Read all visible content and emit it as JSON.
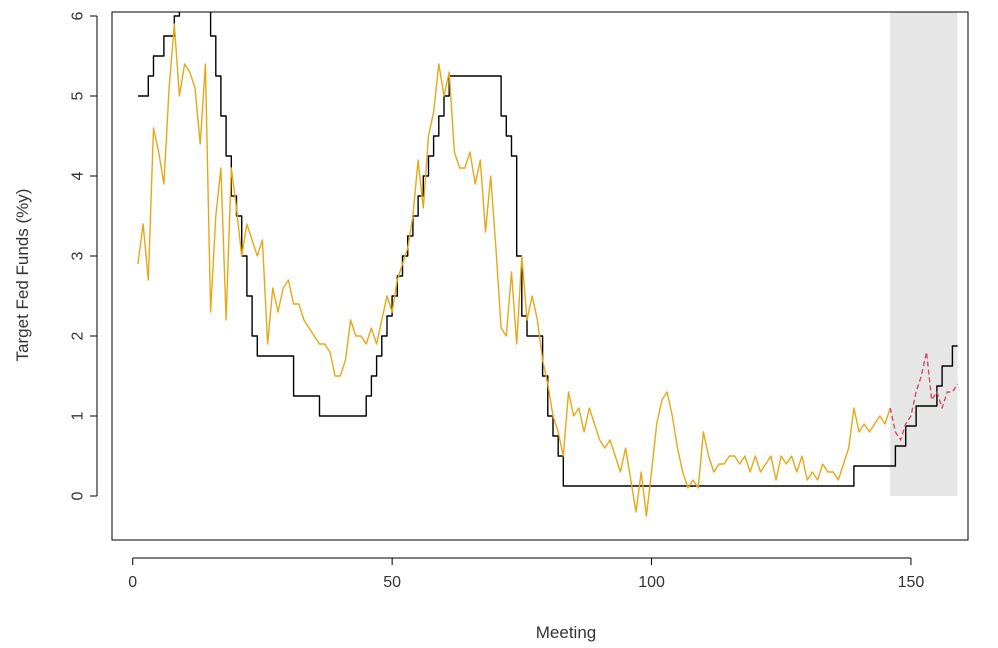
{
  "chart_data": {
    "type": "line",
    "title": "",
    "xlabel": "Meeting",
    "ylabel": "Target Fed Funds (%y)",
    "xlim": [
      -4,
      161
    ],
    "ylim": [
      -0.55,
      6.05
    ],
    "xticks": [
      "0",
      "50",
      "100",
      "150"
    ],
    "xtick_values": [
      0,
      50,
      100,
      150
    ],
    "yticks": [
      "0",
      "1",
      "2",
      "3",
      "4",
      "5",
      "6"
    ],
    "ytick_values": [
      0,
      1,
      2,
      3,
      4,
      5,
      6
    ],
    "grid": false,
    "legend": "none",
    "shaded_region": {
      "x": [
        146,
        159
      ],
      "y": [
        0,
        6.05
      ],
      "color": "#e6e6e6"
    },
    "series": [
      {
        "color": "#000000",
        "style": "solid",
        "step": true,
        "points": [
          [
            1,
            5.0
          ],
          [
            2,
            5.0
          ],
          [
            3,
            5.25
          ],
          [
            4,
            5.5
          ],
          [
            5,
            5.5
          ],
          [
            6,
            5.75
          ],
          [
            7,
            5.75
          ],
          [
            8,
            6.0
          ],
          [
            9,
            6.25
          ],
          [
            14,
            6.25
          ],
          [
            15,
            5.75
          ],
          [
            16,
            5.25
          ],
          [
            17,
            4.75
          ],
          [
            18,
            4.25
          ],
          [
            19,
            3.75
          ],
          [
            20,
            3.5
          ],
          [
            21,
            3.0
          ],
          [
            22,
            2.5
          ],
          [
            23,
            2.0
          ],
          [
            24,
            1.75
          ],
          [
            31,
            1.25
          ],
          [
            36,
            1.0
          ],
          [
            44,
            1.0
          ],
          [
            45,
            1.25
          ],
          [
            46,
            1.5
          ],
          [
            47,
            1.75
          ],
          [
            48,
            2.0
          ],
          [
            49,
            2.25
          ],
          [
            50,
            2.5
          ],
          [
            51,
            2.75
          ],
          [
            52,
            3.0
          ],
          [
            53,
            3.25
          ],
          [
            54,
            3.5
          ],
          [
            55,
            3.75
          ],
          [
            56,
            4.0
          ],
          [
            57,
            4.25
          ],
          [
            58,
            4.5
          ],
          [
            59,
            4.75
          ],
          [
            60,
            5.0
          ],
          [
            61,
            5.25
          ],
          [
            70,
            5.25
          ],
          [
            71,
            4.75
          ],
          [
            72,
            4.5
          ],
          [
            73,
            4.25
          ],
          [
            74,
            3.0
          ],
          [
            75,
            2.25
          ],
          [
            76,
            2.0
          ],
          [
            78,
            2.0
          ],
          [
            79,
            1.5
          ],
          [
            80,
            1.0
          ],
          [
            81,
            0.75
          ],
          [
            82,
            0.5
          ],
          [
            83,
            0.125
          ],
          [
            138,
            0.125
          ],
          [
            139,
            0.375
          ],
          [
            146,
            0.375
          ],
          [
            147,
            0.625
          ],
          [
            148,
            0.625
          ],
          [
            149,
            0.875
          ],
          [
            150,
            0.875
          ],
          [
            151,
            1.125
          ],
          [
            154,
            1.125
          ],
          [
            155,
            1.375
          ],
          [
            156,
            1.625
          ],
          [
            157,
            1.625
          ],
          [
            158,
            1.875
          ],
          [
            159,
            1.875
          ]
        ]
      },
      {
        "color": "#e6a817",
        "style": "solid",
        "step": false,
        "points": [
          [
            1,
            2.9
          ],
          [
            2,
            3.4
          ],
          [
            3,
            2.7
          ],
          [
            4,
            4.6
          ],
          [
            5,
            4.3
          ],
          [
            6,
            3.9
          ],
          [
            7,
            5.1
          ],
          [
            8,
            5.9
          ],
          [
            9,
            5.0
          ],
          [
            10,
            5.4
          ],
          [
            11,
            5.3
          ],
          [
            12,
            5.1
          ],
          [
            13,
            4.4
          ],
          [
            14,
            5.4
          ],
          [
            15,
            2.3
          ],
          [
            16,
            3.5
          ],
          [
            17,
            4.1
          ],
          [
            18,
            2.2
          ],
          [
            19,
            4.1
          ],
          [
            20,
            3.6
          ],
          [
            21,
            3.0
          ],
          [
            22,
            3.4
          ],
          [
            23,
            3.2
          ],
          [
            24,
            3.0
          ],
          [
            25,
            3.2
          ],
          [
            26,
            1.9
          ],
          [
            27,
            2.6
          ],
          [
            28,
            2.3
          ],
          [
            29,
            2.6
          ],
          [
            30,
            2.7
          ],
          [
            31,
            2.4
          ],
          [
            32,
            2.4
          ],
          [
            33,
            2.2
          ],
          [
            34,
            2.1
          ],
          [
            35,
            2.0
          ],
          [
            36,
            1.9
          ],
          [
            37,
            1.9
          ],
          [
            38,
            1.8
          ],
          [
            39,
            1.5
          ],
          [
            40,
            1.5
          ],
          [
            41,
            1.7
          ],
          [
            42,
            2.2
          ],
          [
            43,
            2.0
          ],
          [
            44,
            2.0
          ],
          [
            45,
            1.9
          ],
          [
            46,
            2.1
          ],
          [
            47,
            1.9
          ],
          [
            48,
            2.2
          ],
          [
            49,
            2.5
          ],
          [
            50,
            2.3
          ],
          [
            51,
            2.7
          ],
          [
            52,
            2.9
          ],
          [
            53,
            3.1
          ],
          [
            54,
            3.5
          ],
          [
            55,
            4.2
          ],
          [
            56,
            3.6
          ],
          [
            57,
            4.5
          ],
          [
            58,
            4.8
          ],
          [
            59,
            5.4
          ],
          [
            60,
            5.0
          ],
          [
            61,
            5.3
          ],
          [
            62,
            4.3
          ],
          [
            63,
            4.1
          ],
          [
            64,
            4.1
          ],
          [
            65,
            4.3
          ],
          [
            66,
            3.9
          ],
          [
            67,
            4.2
          ],
          [
            68,
            3.3
          ],
          [
            69,
            4.0
          ],
          [
            70,
            3.1
          ],
          [
            71,
            2.1
          ],
          [
            72,
            2.0
          ],
          [
            73,
            2.8
          ],
          [
            74,
            1.9
          ],
          [
            75,
            3.0
          ],
          [
            76,
            2.2
          ],
          [
            77,
            2.5
          ],
          [
            78,
            2.2
          ],
          [
            79,
            1.7
          ],
          [
            80,
            1.4
          ],
          [
            81,
            1.0
          ],
          [
            82,
            0.8
          ],
          [
            83,
            0.5
          ],
          [
            84,
            1.3
          ],
          [
            85,
            1.0
          ],
          [
            86,
            1.1
          ],
          [
            87,
            0.8
          ],
          [
            88,
            1.1
          ],
          [
            89,
            0.9
          ],
          [
            90,
            0.7
          ],
          [
            91,
            0.6
          ],
          [
            92,
            0.7
          ],
          [
            93,
            0.5
          ],
          [
            94,
            0.3
          ],
          [
            95,
            0.6
          ],
          [
            96,
            0.2
          ],
          [
            97,
            -0.2
          ],
          [
            98,
            0.3
          ],
          [
            99,
            -0.25
          ],
          [
            100,
            0.3
          ],
          [
            101,
            0.9
          ],
          [
            102,
            1.2
          ],
          [
            103,
            1.3
          ],
          [
            104,
            1.0
          ],
          [
            105,
            0.6
          ],
          [
            106,
            0.3
          ],
          [
            107,
            0.1
          ],
          [
            108,
            0.2
          ],
          [
            109,
            0.1
          ],
          [
            110,
            0.8
          ],
          [
            111,
            0.5
          ],
          [
            112,
            0.3
          ],
          [
            113,
            0.4
          ],
          [
            114,
            0.4
          ],
          [
            115,
            0.5
          ],
          [
            116,
            0.5
          ],
          [
            117,
            0.4
          ],
          [
            118,
            0.5
          ],
          [
            119,
            0.3
          ],
          [
            120,
            0.5
          ],
          [
            121,
            0.3
          ],
          [
            122,
            0.4
          ],
          [
            123,
            0.5
          ],
          [
            124,
            0.2
          ],
          [
            125,
            0.5
          ],
          [
            126,
            0.4
          ],
          [
            127,
            0.5
          ],
          [
            128,
            0.3
          ],
          [
            129,
            0.5
          ],
          [
            130,
            0.2
          ],
          [
            131,
            0.3
          ],
          [
            132,
            0.2
          ],
          [
            133,
            0.4
          ],
          [
            134,
            0.3
          ],
          [
            135,
            0.3
          ],
          [
            136,
            0.2
          ],
          [
            137,
            0.4
          ],
          [
            138,
            0.6
          ],
          [
            139,
            1.1
          ],
          [
            140,
            0.8
          ],
          [
            141,
            0.9
          ],
          [
            142,
            0.8
          ],
          [
            143,
            0.9
          ],
          [
            144,
            1.0
          ],
          [
            145,
            0.9
          ],
          [
            146,
            1.1
          ]
        ]
      },
      {
        "color": "#d14b6b",
        "style": "dashed",
        "step": false,
        "points": [
          [
            146,
            1.1
          ],
          [
            147,
            0.8
          ],
          [
            148,
            0.7
          ],
          [
            149,
            0.9
          ],
          [
            150,
            1.0
          ],
          [
            151,
            1.3
          ],
          [
            152,
            1.5
          ],
          [
            153,
            1.8
          ],
          [
            154,
            1.2
          ],
          [
            155,
            1.3
          ],
          [
            156,
            1.1
          ],
          [
            157,
            1.3
          ],
          [
            158,
            1.3
          ],
          [
            159,
            1.4
          ]
        ]
      }
    ]
  }
}
